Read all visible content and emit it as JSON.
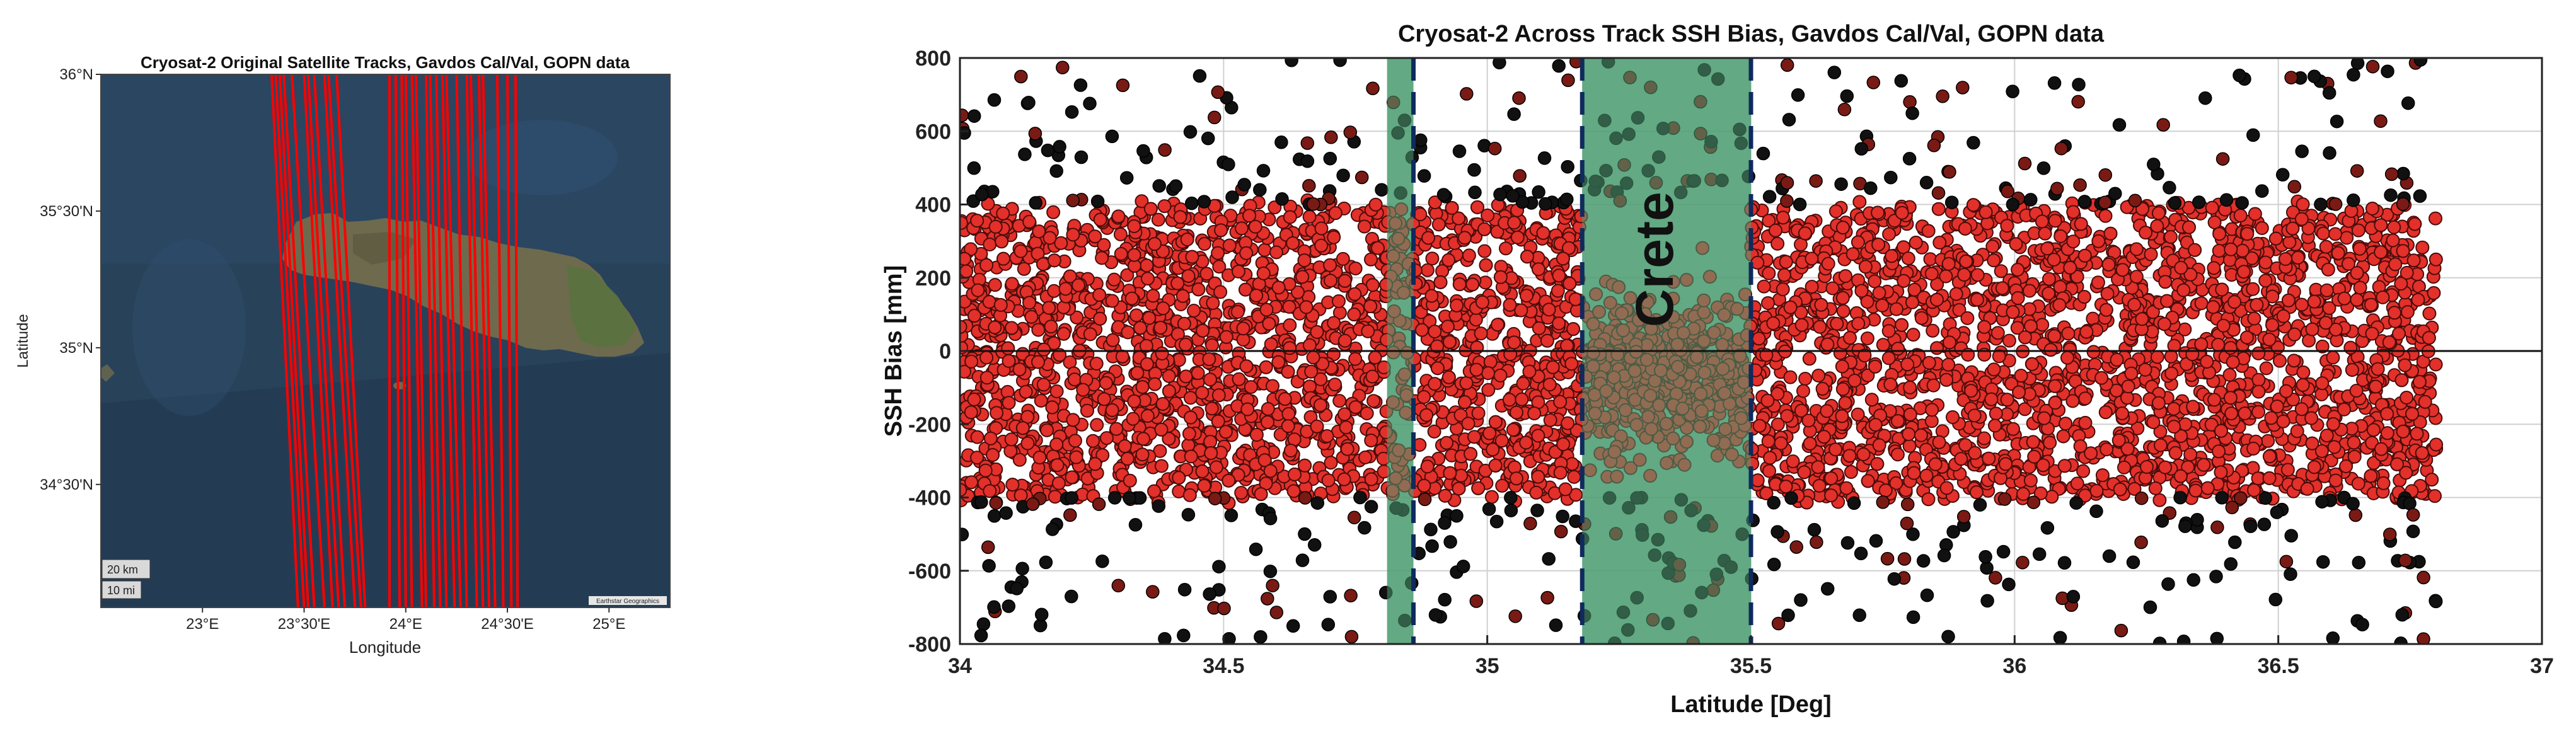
{
  "colors": {
    "map_sea": "#28425a",
    "map_sea_light": "#35577a",
    "map_land": "#6e6a4e",
    "map_land_green": "#59733f",
    "track_red": "#ff0000",
    "point_fill": "#e3302a",
    "point_edge": "#4a0c0a",
    "outlier": "#111111",
    "crete_band": "#4f9e74",
    "dash_line": "#102a5c",
    "crete_text": "#16461e"
  },
  "chart_data": [
    {
      "type": "map",
      "title": "Cryosat-2 Original Satellite Tracks, Gavdos Cal/Val, GOPN data",
      "xlabel": "Longitude",
      "ylabel": "Latitude",
      "x_ticks": [
        "23°E",
        "23°30'E",
        "24°E",
        "24°30'E",
        "25°E"
      ],
      "y_ticks": [
        "36°N",
        "35°30'N",
        "35°N",
        "34°30'N"
      ],
      "scale_bar": [
        "20 km",
        "10 mi"
      ],
      "attribution": "Earthstar Geographics",
      "xlim": [
        22.5,
        25.3
      ],
      "ylim": [
        34.05,
        36.0
      ],
      "series": [
        {
          "track_lon_at_36N": [
            23.34,
            23.36,
            23.38,
            23.4,
            23.44,
            23.5,
            23.52,
            23.55,
            23.6,
            23.62,
            23.66,
            23.92,
            23.95,
            23.98,
            24.0,
            24.03,
            24.05,
            24.1,
            24.12,
            24.15,
            24.18,
            24.2,
            24.25,
            24.3,
            24.32,
            24.36,
            24.38,
            24.45,
            24.5,
            24.54
          ],
          "track_lon_at_34N": [
            23.47,
            23.5,
            23.52,
            23.55,
            23.6,
            23.64,
            23.67,
            23.7,
            23.75,
            23.78,
            23.8,
            23.92,
            23.97,
            24.0,
            24.03,
            24.08,
            24.1,
            24.14,
            24.17,
            24.2,
            24.24,
            24.27,
            24.3,
            24.35,
            24.38,
            24.41,
            24.44,
            24.48,
            24.52,
            24.55
          ]
        }
      ]
    },
    {
      "type": "scatter",
      "title": "Cryosat-2 Across Track SSH Bias, Gavdos Cal/Val, GOPN data",
      "xlabel": "Latitude [Deg]",
      "ylabel": "SSH Bias [mm]",
      "xlim": [
        34,
        37
      ],
      "ylim": [
        -800,
        800
      ],
      "x_ticks": [
        34,
        34.5,
        35,
        35.5,
        36,
        36.5,
        37
      ],
      "y_ticks": [
        -800,
        -600,
        -400,
        -200,
        0,
        200,
        400,
        600,
        800
      ],
      "grid": true,
      "x_range_of_points": [
        34.0,
        36.8
      ],
      "main_cloud_y_range": [
        -400,
        400
      ],
      "zero_line_y": 0,
      "shaded_regions": [
        {
          "x0": 34.81,
          "x1": 34.86,
          "label": ""
        },
        {
          "x0": 35.18,
          "x1": 35.5,
          "label": "Crete"
        }
      ],
      "dashed_lines_x": [
        34.86,
        35.18,
        35.5
      ]
    }
  ]
}
